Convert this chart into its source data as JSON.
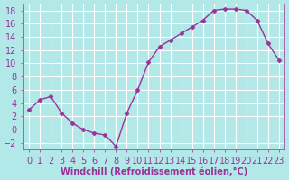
{
  "x": [
    0,
    1,
    2,
    3,
    4,
    5,
    6,
    7,
    8,
    9,
    10,
    11,
    12,
    13,
    14,
    15,
    16,
    17,
    18,
    19,
    20,
    21,
    22,
    23
  ],
  "y": [
    3.0,
    4.5,
    5.0,
    2.5,
    1.0,
    0.0,
    -0.5,
    -0.8,
    -2.5,
    2.5,
    6.0,
    10.2,
    12.5,
    13.5,
    14.5,
    15.5,
    16.5,
    18.0,
    18.2,
    18.2,
    18.0,
    16.5,
    13.0,
    10.5
  ],
  "xlim": [
    -0.5,
    23.5
  ],
  "ylim": [
    -3,
    19
  ],
  "yticks": [
    -2,
    0,
    2,
    4,
    6,
    8,
    10,
    12,
    14,
    16,
    18
  ],
  "xticks": [
    0,
    1,
    2,
    3,
    4,
    5,
    6,
    7,
    8,
    9,
    10,
    11,
    12,
    13,
    14,
    15,
    16,
    17,
    18,
    19,
    20,
    21,
    22,
    23
  ],
  "line_color": "#993399",
  "marker": "D",
  "marker_size": 2.5,
  "line_width": 1.0,
  "background_color": "#b3e8e8",
  "grid_color": "#ffffff",
  "xlabel": "Windchill (Refroidissement éolien,°C)",
  "xlabel_color": "#993399",
  "tick_color": "#993399",
  "label_fontsize": 7
}
